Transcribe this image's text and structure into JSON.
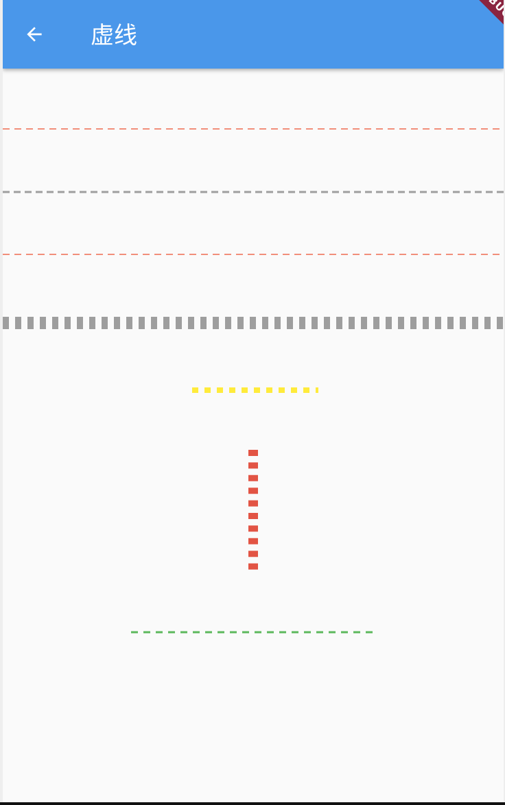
{
  "app_bar": {
    "title": "虚线",
    "back_icon": "arrow-back-icon",
    "color": "#4a97ea"
  },
  "debug_banner": {
    "label": "DEBUG",
    "color": "#8a2440"
  },
  "dashed_lines": [
    {
      "name": "red-thin-dashed-line",
      "orientation": "horizontal",
      "color": "#ee6a50"
    },
    {
      "name": "grey-dashed-line",
      "orientation": "horizontal",
      "color": "#9e9e9e"
    },
    {
      "name": "red-thin-dashed-line-2",
      "orientation": "horizontal",
      "color": "#ee6a50"
    },
    {
      "name": "grey-thick-dashed-line",
      "orientation": "horizontal",
      "color": "#9e9e9e"
    },
    {
      "name": "yellow-dotted-line",
      "orientation": "horizontal",
      "color": "#ffeb3b"
    },
    {
      "name": "red-vertical-dashed-line",
      "orientation": "vertical",
      "color": "#e25444"
    },
    {
      "name": "green-dashed-line",
      "orientation": "horizontal",
      "color": "#5cb85c"
    }
  ]
}
